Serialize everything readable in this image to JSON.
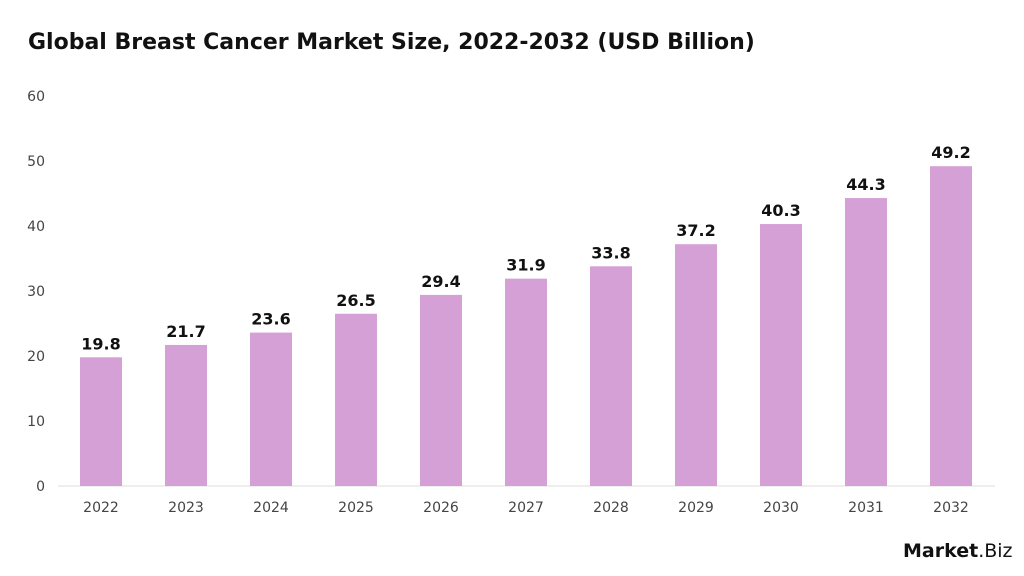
{
  "chart_data": {
    "type": "bar",
    "title": "Global Breast Cancer Market Size, 2022-2032 (USD Billion)",
    "categories": [
      "2022",
      "2023",
      "2024",
      "2025",
      "2026",
      "2027",
      "2028",
      "2029",
      "2030",
      "2031",
      "2032"
    ],
    "values": [
      19.8,
      21.7,
      23.6,
      26.5,
      29.4,
      31.9,
      33.8,
      37.2,
      40.3,
      44.3,
      49.2
    ],
    "yticks": [
      0,
      10,
      20,
      30,
      40,
      50,
      60
    ],
    "ylim": [
      0,
      60
    ],
    "xlabel": "",
    "ylabel": "",
    "grid": false,
    "bar_color": "#d5a0d6"
  },
  "logo": {
    "brand": "Market",
    "suffix": ".Biz"
  }
}
